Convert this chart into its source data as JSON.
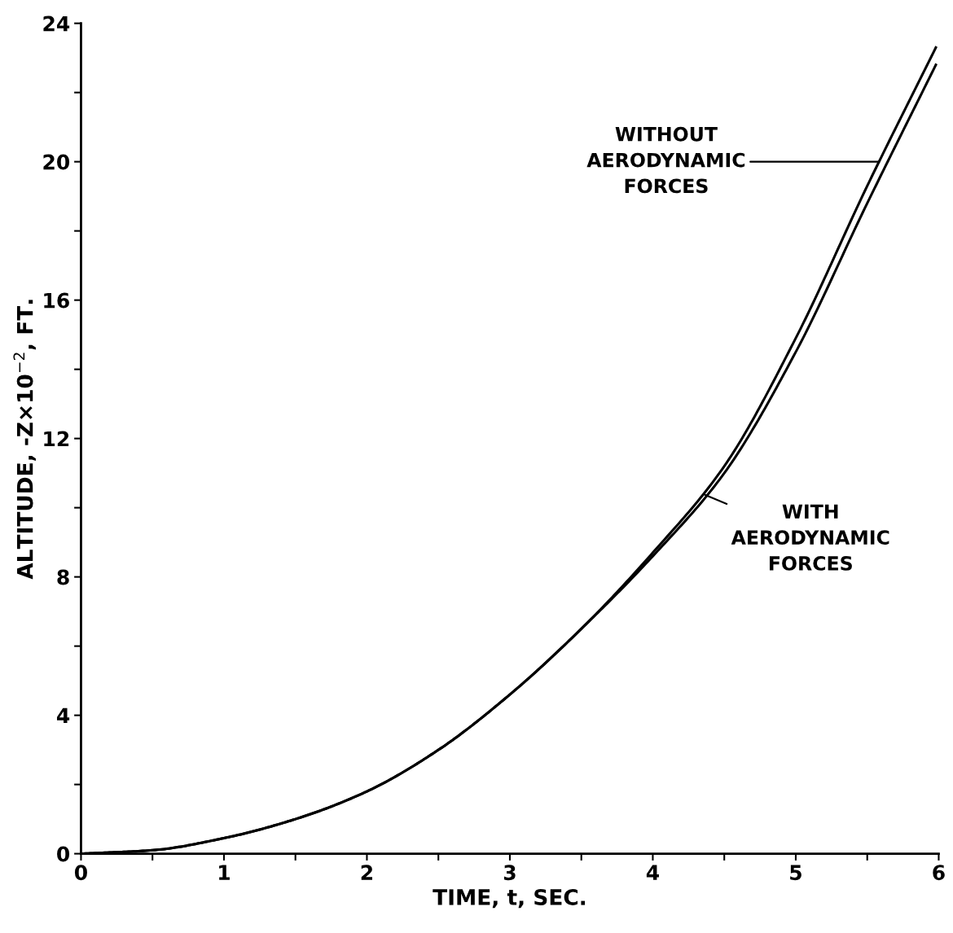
{
  "chart_data": {
    "type": "line",
    "xlabel": "TIME, t, SEC.",
    "ylabel": "ALTITUDE, -Z×10$^{−2}$, FT.",
    "x": [
      0,
      0.5,
      1,
      1.5,
      2,
      2.5,
      3,
      3.5,
      4,
      4.5,
      5,
      5.5,
      5.98
    ],
    "series": [
      {
        "color": "#000000",
        "values": [
          0,
          0.1,
          0.45,
          1.0,
          1.8,
          3.0,
          4.6,
          6.5,
          8.7,
          11.2,
          14.9,
          19.3,
          23.3
        ]
      },
      {
        "color": "#000000",
        "values": [
          0,
          0.1,
          0.45,
          1.0,
          1.8,
          3.0,
          4.6,
          6.5,
          8.6,
          11.0,
          14.5,
          18.8,
          22.8
        ]
      }
    ],
    "annotations": [
      {
        "text": "WITHOUT\nAERODYNAMIC\nFORCES",
        "x": 5.6,
        "y": 20.0
      },
      {
        "text": "WITH\nAERODYNAMIC\nFORCES",
        "x": 4.35,
        "y": 10.4
      }
    ],
    "xlim": [
      0,
      6
    ],
    "ylim": [
      0,
      24
    ],
    "xticks": [
      0,
      {
        "value": 0.5,
        "label": null
      },
      1,
      {
        "value": 1.5,
        "label": null
      },
      2,
      {
        "value": 2.5,
        "label": null
      },
      3,
      {
        "value": 3.5,
        "label": null
      },
      4,
      {
        "value": 4.5,
        "label": null
      },
      5,
      {
        "value": 5.5,
        "label": null
      },
      6
    ],
    "yticks": [
      0,
      {
        "value": 2,
        "label": null
      },
      4,
      {
        "value": 6,
        "label": null
      },
      8,
      {
        "value": 10,
        "label": null
      },
      12,
      {
        "value": 14,
        "label": null
      },
      16,
      {
        "value": 18,
        "label": null
      },
      20,
      {
        "value": 22,
        "label": null
      },
      24
    ],
    "grid": false,
    "marker": "none",
    "line_style": "solid"
  }
}
